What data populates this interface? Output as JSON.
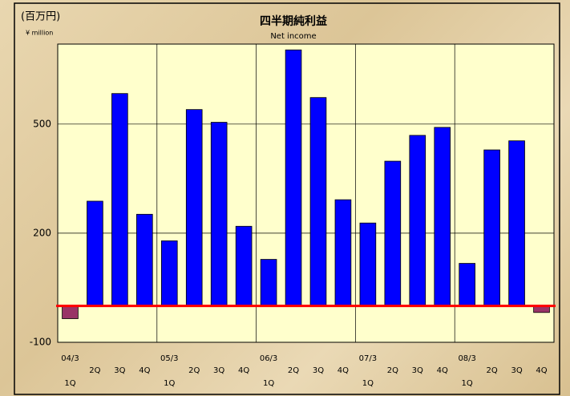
{
  "chart_data": {
    "type": "bar",
    "title": "四半期純利益",
    "subtitle": "Net income",
    "unit_label": "(百万円)",
    "unit_label_en": "¥ million",
    "categories": [
      "1Q",
      "2Q",
      "3Q",
      "4Q",
      "1Q",
      "2Q",
      "3Q",
      "4Q",
      "1Q",
      "2Q",
      "3Q",
      "4Q",
      "1Q",
      "2Q",
      "3Q",
      "4Q",
      "1Q",
      "2Q",
      "3Q",
      "4Q"
    ],
    "year_labels": [
      "04/3",
      "05/3",
      "06/3",
      "07/3",
      "08/3"
    ],
    "values": [
      -35,
      288,
      584,
      252,
      179,
      540,
      505,
      219,
      128,
      704,
      573,
      292,
      228,
      398,
      469,
      491,
      117,
      429,
      454,
      -18
    ],
    "color": "#0000ff",
    "negative_color": "#993366",
    "ylim": [
      -100,
      720
    ],
    "yticks": [
      -100,
      200,
      500
    ],
    "grid": true
  }
}
